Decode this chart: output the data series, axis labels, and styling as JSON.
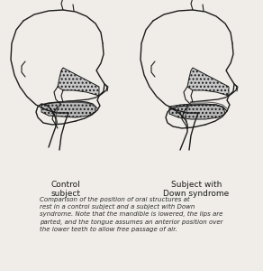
{
  "bg_color": "#f0ede8",
  "line_color": "#1a1a1a",
  "label1": "Control\nsubject",
  "label2": "Subject with\nDown syndrome",
  "caption_line1": "Comparison of the position of oral structures at",
  "caption_line2": "rest in a control subject and a subject with Down",
  "caption_line3": "syndrome. Note that the mandible is lowered, the lips are",
  "caption_line4": "parted, and the tongue assumes an anterior position over",
  "caption_line5": "the lower teeth to allow free passage of air.",
  "label_fontsize": 6.5,
  "caption_fontsize": 5.0,
  "figsize": [
    2.92,
    3.0
  ],
  "dpi": 100
}
